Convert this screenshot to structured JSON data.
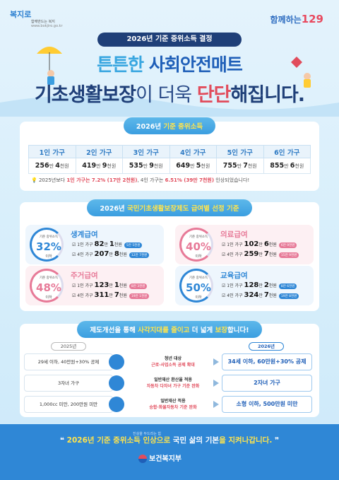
{
  "logos": {
    "left_main": "복지로",
    "left_sub": "함께만드는 복지",
    "left_domain": "www.bokjiro.go.kr",
    "right_main": "함께하는",
    "right_num": "129"
  },
  "header": {
    "badge": "2026년 기준 중위소득 결정",
    "line1_a": "튼튼한 ",
    "line1_b": "사회안전매트",
    "line2_a": "기초생활보장",
    "line2_b": "이 더욱 ",
    "line2_c": "단단",
    "line2_d": "해집니다."
  },
  "median": {
    "title_a": "2026년 ",
    "title_b": "기준 중위소득",
    "headers": [
      "1인 가구",
      "2인 가구",
      "3인 가구",
      "4인 가구",
      "5인 가구",
      "6인 가구"
    ],
    "values": [
      {
        "a": "256",
        "u": "만 ",
        "b": "4",
        "c": "천원"
      },
      {
        "a": "419",
        "u": "만 ",
        "b": "9",
        "c": "천원"
      },
      {
        "a": "535",
        "u": "만 ",
        "b": "9",
        "c": "천원"
      },
      {
        "a": "649",
        "u": "만 ",
        "b": "5",
        "c": "천원"
      },
      {
        "a": "755",
        "u": "만 ",
        "b": "7",
        "c": "천원"
      },
      {
        "a": "855",
        "u": "만 ",
        "b": "6",
        "c": "천원"
      }
    ],
    "note_a": "2025년보다 ",
    "note_b": "1인 가구는 7.2% (17만 2천원)",
    "note_c": ", 4인 가구는 ",
    "note_d": "6.51% (39만 7천원)",
    "note_e": " 인상되었습니다!"
  },
  "benefits": {
    "title_a": "2026년 ",
    "title_b": "국민기초생활보장제도 급여별 선정 기준",
    "items": [
      {
        "circle_label": "기준 중위소득",
        "pct": "32%",
        "below": "이하",
        "name": "생계급여",
        "r1_label": "1인 가구",
        "r1_a": "82",
        "r1_b": "만 ",
        "r1_c": "1",
        "r1_d": "천원",
        "r1_tag": "5만 5천원",
        "r2_label": "4인 가구",
        "r2_a": "207",
        "r2_b": "만 ",
        "r2_c": "8",
        "r2_d": "천원",
        "r2_tag": "12만 7천원",
        "color": "#2f87d6"
      },
      {
        "circle_label": "기준 중위소득",
        "pct": "40%",
        "below": "이하",
        "name": "의료급여",
        "r1_label": "1인 가구",
        "r1_a": "102",
        "r1_b": "만 ",
        "r1_c": "6",
        "r1_d": "천원",
        "r1_tag": "6만 9천원",
        "r2_label": "4인 가구",
        "r2_a": "259",
        "r2_b": "만 ",
        "r2_c": "7",
        "r2_d": "천원",
        "r2_tag": "15만 9천원",
        "color": "#e77a98"
      },
      {
        "circle_label": "기준 중위소득",
        "pct": "48%",
        "below": "이하",
        "name": "주거급여",
        "r1_label": "1인 가구",
        "r1_a": "123",
        "r1_b": "만 ",
        "r1_c": "1",
        "r1_d": "천원",
        "r1_tag": "8만 3천원",
        "r2_label": "4인 가구",
        "r2_a": "311",
        "r2_b": "만 ",
        "r2_c": "7",
        "r2_d": "천원",
        "r2_tag": "19만 1천원",
        "color": "#e77a98"
      },
      {
        "circle_label": "기준 중위소득",
        "pct": "50%",
        "below": "이하",
        "name": "교육급여",
        "r1_label": "1인 가구",
        "r1_a": "128",
        "r1_b": "만 ",
        "r1_c": "2",
        "r1_d": "천원",
        "r1_tag": "8만 6천원",
        "r2_label": "4인 가구",
        "r2_a": "324",
        "r2_b": "만 ",
        "r2_c": "7",
        "r2_d": "천원",
        "r2_tag": "19만 8천원",
        "color": "#2f87d6"
      }
    ]
  },
  "improve": {
    "title_a": "제도개선을 통해 ",
    "title_b": "사각지대를 줄이고",
    "title_c": " 더 넓게 ",
    "title_d": "보장",
    "title_e": "합니다!",
    "old_year": "2025년",
    "new_year": "2026년",
    "rows": [
      {
        "old": "29세 이하, 40만원+30% 공제",
        "mid_a": "청년 대상",
        "mid_b": "근로·사업소득 공제 확대",
        "new": "34세 이하, 60만원+30% 공제"
      },
      {
        "old": "3자녀 가구",
        "mid_a": "일반재산 환산율 적용",
        "mid_b": "자동차 다자녀 가구 기준 완화",
        "new": "2자녀 가구"
      },
      {
        "old": "1,000cc 미만, 200만원 미만",
        "mid_a": "일반재산 적용",
        "mid_b": "승합·화물자동차 기준 완화",
        "new": "소형 이하, 500만원 미만"
      }
    ]
  },
  "footer": {
    "slogan_a": "2026년 기준 중위소득 인상으로 ",
    "slogan_b": "국민 삶의 기본",
    "slogan_c": "을 지켜나갑니다.",
    "ministry_small": "진실을 두드리는 힘",
    "ministry": "보건복지부"
  }
}
